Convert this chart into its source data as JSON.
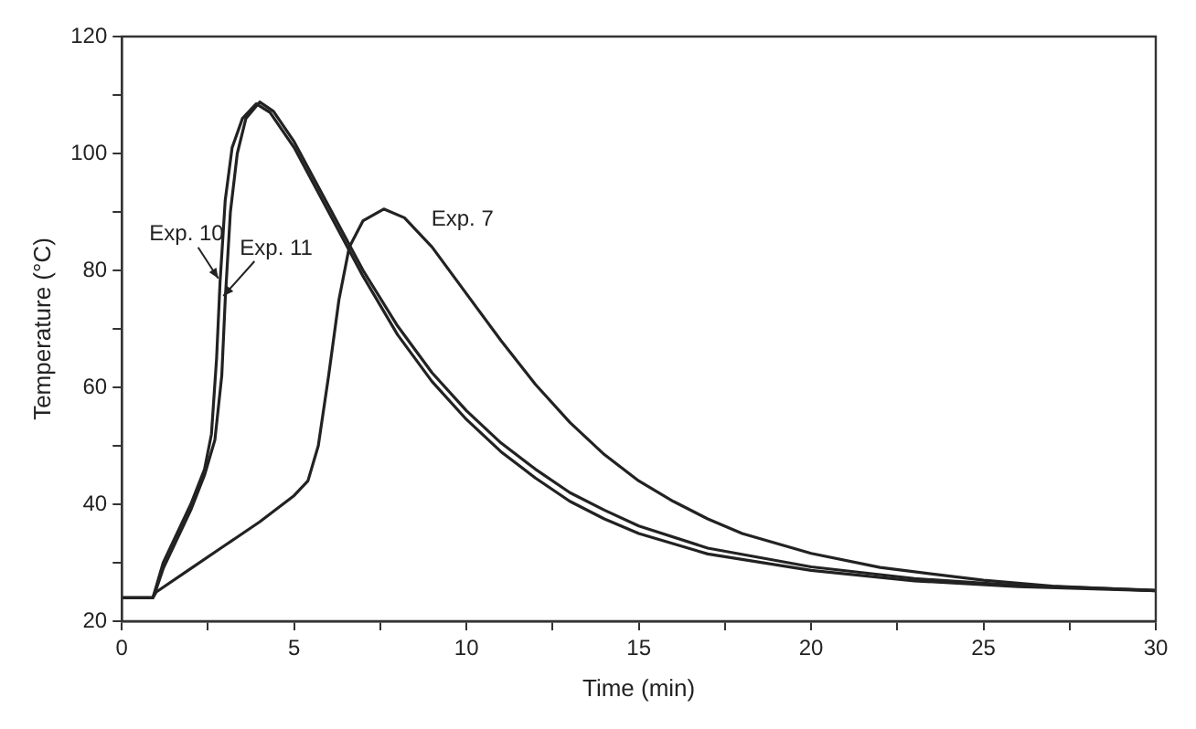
{
  "chart_data": {
    "type": "line",
    "xlabel": "Time (min)",
    "ylabel": "Temperature (°C)",
    "xlim": [
      0,
      30
    ],
    "xticks": [
      0,
      {
        "value": 2.5,
        "label": null
      },
      5,
      {
        "value": 7.5,
        "label": null
      },
      10,
      {
        "value": 12.5,
        "label": null
      },
      15,
      {
        "value": 17.5,
        "label": null
      },
      20,
      {
        "value": 22.5,
        "label": null
      },
      25,
      {
        "value": 27.5,
        "label": null
      },
      30
    ],
    "ylim": [
      20,
      120
    ],
    "yticks": [
      20,
      {
        "value": 30,
        "label": null
      },
      40,
      {
        "value": 50,
        "label": null
      },
      60,
      {
        "value": 70,
        "label": null
      },
      80,
      {
        "value": 90,
        "label": null
      },
      100,
      {
        "value": 110,
        "label": null
      },
      120
    ],
    "grid": false,
    "legend": false,
    "marker": "none",
    "line_style": "solid",
    "series": [
      {
        "name": "Exp. 10",
        "color": "#222222",
        "x": [
          0,
          0.9,
          1,
          1.2,
          1.6,
          2,
          2.4,
          2.6,
          2.75,
          2.85,
          3,
          3.2,
          3.5,
          3.9,
          4.3,
          5,
          6,
          7,
          8,
          9,
          10,
          11,
          12,
          13,
          14,
          15,
          17,
          20,
          23,
          26,
          30
        ],
        "values": [
          24,
          24,
          26,
          30,
          35,
          40,
          46,
          52,
          65,
          78,
          92,
          101,
          106,
          108.5,
          107,
          101,
          90,
          79,
          69,
          61,
          54.5,
          49,
          44.5,
          40.5,
          37.5,
          35,
          31.5,
          28.7,
          26.9,
          25.9,
          25.2
        ]
      },
      {
        "name": "Exp. 11",
        "color": "#222222",
        "x": [
          0,
          0.9,
          1,
          1.2,
          1.6,
          2,
          2.4,
          2.7,
          2.9,
          3,
          3.15,
          3.35,
          3.6,
          4,
          4.4,
          5,
          6,
          7,
          8,
          9,
          10,
          11,
          12,
          13,
          14,
          15,
          17,
          20,
          23,
          26,
          30
        ],
        "values": [
          24,
          24,
          25.5,
          29,
          34,
          39,
          45,
          51,
          62,
          75,
          90,
          100,
          106,
          108.8,
          107.2,
          102,
          91,
          80,
          70.5,
          62.5,
          56,
          50.5,
          46,
          42,
          39,
          36.3,
          32.5,
          29.3,
          27.3,
          26.1,
          25.3
        ]
      },
      {
        "name": "Exp. 7",
        "color": "#222222",
        "x": [
          0,
          0.9,
          1,
          2,
          3,
          4,
          5,
          5.4,
          5.7,
          6,
          6.3,
          6.6,
          7,
          7.6,
          8.2,
          9,
          10,
          11,
          12,
          13,
          14,
          15,
          16,
          17,
          18,
          20,
          22,
          25,
          27,
          30
        ],
        "values": [
          24,
          24,
          25,
          29,
          33,
          37,
          41.5,
          44,
          50,
          62,
          75,
          84,
          88.5,
          90.5,
          89,
          84,
          76,
          68,
          60.5,
          54,
          48.5,
          44,
          40.5,
          37.5,
          35,
          31.6,
          29.2,
          27,
          26,
          25.2
        ]
      }
    ]
  }
}
